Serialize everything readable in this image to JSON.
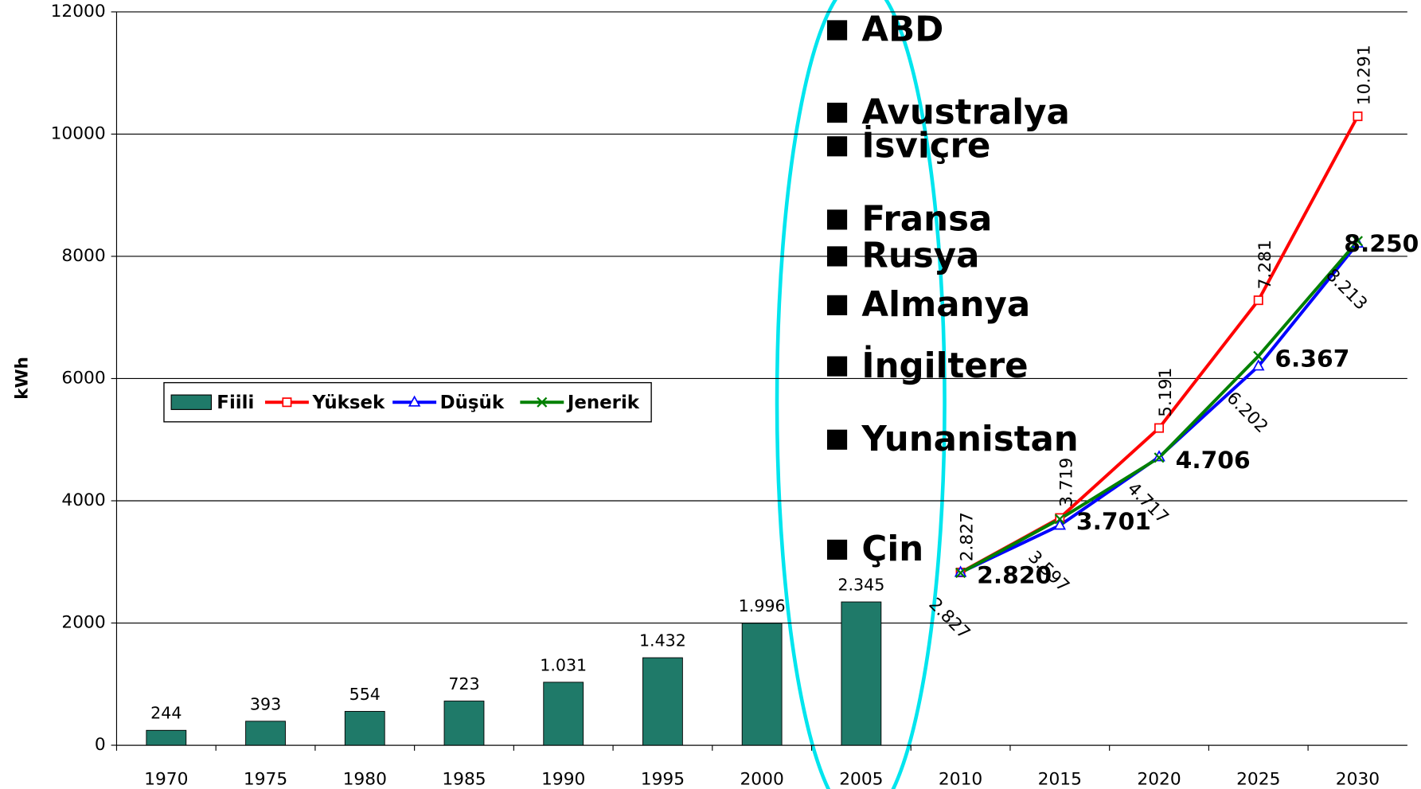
{
  "chart_data": {
    "type": "bar_line",
    "y_label": "kWh",
    "categories": [
      "1970",
      "1975",
      "1980",
      "1985",
      "1990",
      "1995",
      "2000",
      "2005",
      "2010",
      "2015",
      "2020",
      "2025",
      "2030"
    ],
    "ylim": [
      0,
      12000
    ],
    "yticks": [
      0,
      2000,
      4000,
      6000,
      8000,
      10000,
      12000
    ],
    "grid": true,
    "series": [
      {
        "name": "Fiili",
        "type": "bar",
        "color": "#1f7a69",
        "values": [
          244,
          393,
          554,
          723,
          1031,
          1432,
          1996,
          2345,
          null,
          null,
          null,
          null,
          null
        ],
        "value_labels": [
          "244",
          "393",
          "554",
          "723",
          "1.031",
          "1.432",
          "1.996",
          "2.345",
          null,
          null,
          null,
          null,
          null
        ]
      },
      {
        "name": "Yüksek",
        "type": "line",
        "marker": "square",
        "color": "#ff0000",
        "values": [
          null,
          null,
          null,
          null,
          null,
          null,
          null,
          null,
          2827,
          3719,
          5191,
          7281,
          10291
        ],
        "value_labels": [
          null,
          null,
          null,
          null,
          null,
          null,
          null,
          null,
          "2.827",
          "3.719",
          "5.191",
          "7.281",
          "10.291"
        ]
      },
      {
        "name": "Düşük",
        "type": "line",
        "marker": "triangle",
        "color": "#0000ff",
        "values": [
          null,
          null,
          null,
          null,
          null,
          null,
          null,
          null,
          2827,
          3597,
          4717,
          6202,
          8213
        ],
        "value_labels": [
          null,
          null,
          null,
          null,
          null,
          null,
          null,
          null,
          "2.827",
          "3.597",
          "4.717",
          "6.202",
          "8.213"
        ]
      },
      {
        "name": "Jenerik",
        "type": "line",
        "marker": "x",
        "color": "#008000",
        "values": [
          null,
          null,
          null,
          null,
          null,
          null,
          null,
          null,
          2820,
          3701,
          4706,
          6367,
          8250
        ],
        "value_labels": [
          null,
          null,
          null,
          null,
          null,
          null,
          null,
          null,
          "2.820",
          "3.701",
          "4.706",
          "6.367",
          "8.250"
        ]
      }
    ],
    "annotations": [
      {
        "text": "ABD",
        "value": 11700
      },
      {
        "text": "Avustralya",
        "value": 10350
      },
      {
        "text": "İsviçre",
        "value": 9800
      },
      {
        "text": "Fransa",
        "value": 8600
      },
      {
        "text": "Rusya",
        "value": 8000
      },
      {
        "text": "Almanya",
        "value": 7200
      },
      {
        "text": "İngiltere",
        "value": 6200
      },
      {
        "text": "Yunanistan",
        "value": 5000
      },
      {
        "text": "Çin",
        "value": 3200
      }
    ]
  }
}
